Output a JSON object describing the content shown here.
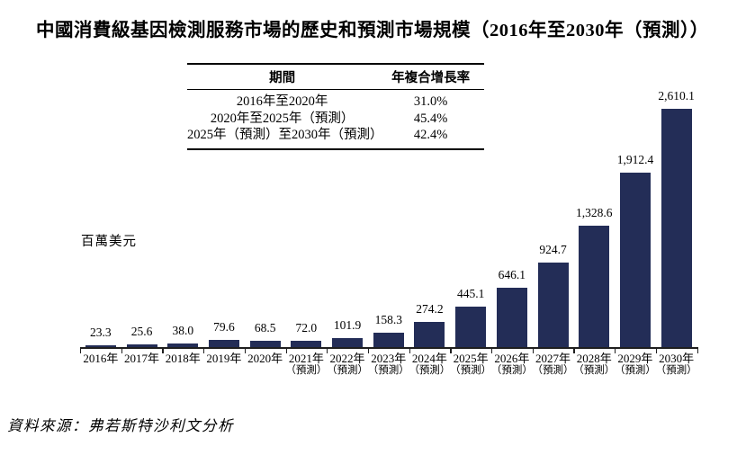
{
  "title": "中國消費級基因檢測服務市場的歷史和預測市場規模（2016年至2030年（預測））",
  "cagr_table": {
    "headers": [
      "期間",
      "年複合增長率"
    ],
    "rows": [
      {
        "period": "2016年至2020年",
        "cagr": "31.0%"
      },
      {
        "period": "2020年至2025年（預測）",
        "cagr": "45.4%"
      },
      {
        "period": "2025年（預測）至2030年（預測）",
        "cagr": "42.4%"
      }
    ]
  },
  "chart_data": {
    "type": "bar",
    "title": "中國消費級基因檢測服務市場的歷史和預測市場規模（2016年至2030年（預測））",
    "unit_label": "百萬美元",
    "xlabel": "",
    "ylabel": "百萬美元",
    "categories": [
      "2016年",
      "2017年",
      "2018年",
      "2019年",
      "2020年",
      "2021年",
      "2022年",
      "2023年",
      "2024年",
      "2025年",
      "2026年",
      "2027年",
      "2028年",
      "2029年",
      "2030年"
    ],
    "category_sublabels": [
      "",
      "",
      "",
      "",
      "",
      "（預測）",
      "（預測）",
      "（預測）",
      "（預測）",
      "（預測）",
      "（預測）",
      "（預測）",
      "（預測）",
      "（預測）",
      "（預測）"
    ],
    "values": [
      23.3,
      25.6,
      38.0,
      79.6,
      68.5,
      72.0,
      101.9,
      158.3,
      274.2,
      445.1,
      646.1,
      924.7,
      1328.6,
      1912.4,
      2610.1
    ],
    "value_labels": [
      "23.3",
      "25.6",
      "38.0",
      "79.6",
      "68.5",
      "72.0",
      "101.9",
      "158.3",
      "274.2",
      "445.1",
      "646.1",
      "924.7",
      "1,328.6",
      "1,912.4",
      "2,610.1"
    ],
    "bar_color": "#232d57",
    "axis_color": "#1f1f1f",
    "ylim": [
      0,
      2700
    ],
    "grid": false,
    "legend": null
  },
  "source": "資料來源：弗若斯特沙利文分析"
}
